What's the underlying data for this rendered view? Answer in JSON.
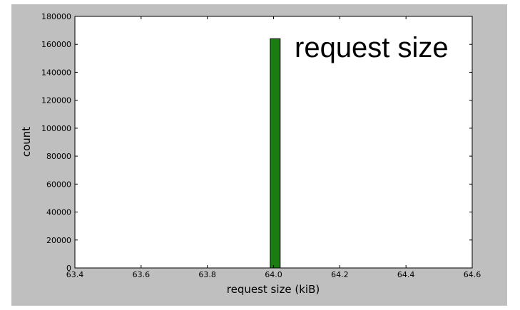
{
  "chart_data": {
    "type": "bar",
    "title": "",
    "annotation": "request size",
    "xlabel": "request size (kiB)",
    "ylabel": "count",
    "xlim": [
      63.4,
      64.6
    ],
    "ylim": [
      0,
      180000
    ],
    "x_ticks": [
      "63.4",
      "63.6",
      "63.8",
      "64.0",
      "64.2",
      "64.4",
      "64.6"
    ],
    "y_ticks": [
      "0",
      "20000",
      "40000",
      "60000",
      "80000",
      "100000",
      "120000",
      "140000",
      "160000",
      "180000"
    ],
    "bars": [
      {
        "x_start": 63.99,
        "x_end": 64.02,
        "value": 164000
      }
    ],
    "colors": {
      "bar_fill": "#1a7d12",
      "bar_edge": "#000000",
      "figure_bg": "#bfbfbf",
      "plot_bg": "#ffffff"
    },
    "grid": false,
    "legend": "none"
  }
}
